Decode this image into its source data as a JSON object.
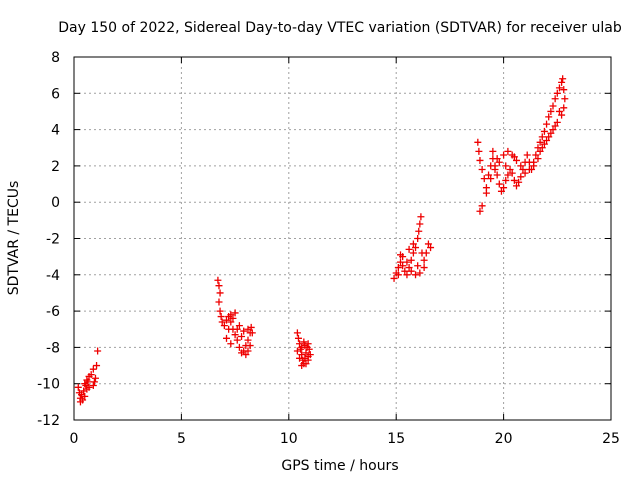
{
  "chart_data": {
    "type": "scatter",
    "title": "Day 150 of 2022, Sidereal Day-to-day VTEC variation (SDTVAR) for receiver ulab",
    "xlabel": "GPS time / hours",
    "ylabel": "SDTVAR / TECUs",
    "xlim": [
      0,
      25
    ],
    "ylim": [
      -12,
      8
    ],
    "xticks": [
      "0",
      "5",
      "10",
      "15",
      "20",
      "25"
    ],
    "yticks": [
      "8",
      "6",
      "4",
      "2",
      "0",
      "-2",
      "-4",
      "-6",
      "-8",
      "-10",
      "-12"
    ],
    "grid": true,
    "marker": "+",
    "marker_color": "#ee0000",
    "series": [
      {
        "name": "SDTVAR",
        "points": [
          [
            0.2,
            -10.2
          ],
          [
            0.25,
            -10.5
          ],
          [
            0.3,
            -10.8
          ],
          [
            0.35,
            -10.6
          ],
          [
            0.4,
            -10.9
          ],
          [
            0.45,
            -10.4
          ],
          [
            0.5,
            -10.7
          ],
          [
            0.55,
            -10.1
          ],
          [
            0.6,
            -10.3
          ],
          [
            0.65,
            -9.9
          ],
          [
            0.7,
            -9.6
          ],
          [
            0.8,
            -9.5
          ],
          [
            0.9,
            -9.2
          ],
          [
            0.95,
            -9.9
          ],
          [
            1.0,
            -9.7
          ],
          [
            1.05,
            -9.0
          ],
          [
            1.1,
            -8.2
          ],
          [
            0.3,
            -11.0
          ],
          [
            0.5,
            -10.0
          ],
          [
            0.7,
            -10.2
          ],
          [
            0.9,
            -10.1
          ],
          [
            0.6,
            -9.8
          ],
          [
            6.7,
            -4.3
          ],
          [
            6.75,
            -4.6
          ],
          [
            6.8,
            -5.0
          ],
          [
            6.75,
            -5.5
          ],
          [
            6.8,
            -6.0
          ],
          [
            6.85,
            -6.3
          ],
          [
            6.9,
            -6.6
          ],
          [
            7.0,
            -6.8
          ],
          [
            7.1,
            -6.5
          ],
          [
            7.2,
            -6.3
          ],
          [
            7.3,
            -6.6
          ],
          [
            7.4,
            -7.0
          ],
          [
            7.5,
            -7.3
          ],
          [
            7.6,
            -7.6
          ],
          [
            7.7,
            -8.0
          ],
          [
            7.8,
            -8.3
          ],
          [
            7.9,
            -8.2
          ],
          [
            8.0,
            -7.9
          ],
          [
            8.1,
            -7.6
          ],
          [
            8.2,
            -7.2
          ],
          [
            8.25,
            -6.9
          ],
          [
            8.3,
            -7.2
          ],
          [
            8.2,
            -7.9
          ],
          [
            8.1,
            -8.2
          ],
          [
            8.0,
            -8.4
          ],
          [
            7.8,
            -7.4
          ],
          [
            7.6,
            -7.0
          ],
          [
            7.4,
            -6.4
          ],
          [
            7.3,
            -6.2
          ],
          [
            7.5,
            -6.1
          ],
          [
            7.7,
            -6.8
          ],
          [
            7.9,
            -7.1
          ],
          [
            8.1,
            -7.0
          ],
          [
            7.2,
            -7.0
          ],
          [
            7.1,
            -7.5
          ],
          [
            7.3,
            -7.8
          ],
          [
            10.4,
            -7.2
          ],
          [
            10.45,
            -7.5
          ],
          [
            10.5,
            -7.8
          ],
          [
            10.55,
            -8.1
          ],
          [
            10.6,
            -8.4
          ],
          [
            10.65,
            -8.7
          ],
          [
            10.7,
            -8.9
          ],
          [
            10.75,
            -8.6
          ],
          [
            10.8,
            -8.3
          ],
          [
            10.85,
            -8.0
          ],
          [
            10.9,
            -7.8
          ],
          [
            10.95,
            -8.1
          ],
          [
            11.0,
            -8.4
          ],
          [
            10.9,
            -8.7
          ],
          [
            10.8,
            -8.9
          ],
          [
            10.6,
            -8.0
          ],
          [
            10.7,
            -7.7
          ],
          [
            10.5,
            -8.6
          ],
          [
            10.4,
            -8.2
          ],
          [
            10.6,
            -9.0
          ],
          [
            10.75,
            -7.9
          ],
          [
            10.9,
            -8.5
          ],
          [
            14.9,
            -4.2
          ],
          [
            15.0,
            -3.9
          ],
          [
            15.1,
            -3.6
          ],
          [
            15.2,
            -3.3
          ],
          [
            15.3,
            -3.5
          ],
          [
            15.4,
            -3.8
          ],
          [
            15.5,
            -4.0
          ],
          [
            15.6,
            -3.6
          ],
          [
            15.7,
            -3.2
          ],
          [
            15.8,
            -2.8
          ],
          [
            15.9,
            -2.5
          ],
          [
            16.0,
            -2.0
          ],
          [
            16.05,
            -1.6
          ],
          [
            16.1,
            -1.2
          ],
          [
            16.15,
            -0.8
          ],
          [
            16.2,
            -2.8
          ],
          [
            16.3,
            -3.2
          ],
          [
            16.4,
            -2.8
          ],
          [
            16.5,
            -2.3
          ],
          [
            16.6,
            -2.5
          ],
          [
            16.3,
            -3.6
          ],
          [
            16.1,
            -3.9
          ],
          [
            15.9,
            -4.0
          ],
          [
            15.7,
            -3.8
          ],
          [
            15.5,
            -3.3
          ],
          [
            15.3,
            -3.0
          ],
          [
            15.2,
            -2.9
          ],
          [
            15.6,
            -2.6
          ],
          [
            15.8,
            -2.3
          ],
          [
            15.1,
            -4.0
          ],
          [
            16.0,
            -3.5
          ],
          [
            18.8,
            3.3
          ],
          [
            18.85,
            2.8
          ],
          [
            18.9,
            2.3
          ],
          [
            19.0,
            1.8
          ],
          [
            19.1,
            1.3
          ],
          [
            19.2,
            0.8
          ],
          [
            19.3,
            1.5
          ],
          [
            19.4,
            2.0
          ],
          [
            19.5,
            2.4
          ],
          [
            19.6,
            2.0
          ],
          [
            19.7,
            1.5
          ],
          [
            19.8,
            1.0
          ],
          [
            19.9,
            0.6
          ],
          [
            20.0,
            0.8
          ],
          [
            20.1,
            1.2
          ],
          [
            20.2,
            1.5
          ],
          [
            20.3,
            1.8
          ],
          [
            20.4,
            1.6
          ],
          [
            20.5,
            1.2
          ],
          [
            20.6,
            0.9
          ],
          [
            20.7,
            1.1
          ],
          [
            20.8,
            1.4
          ],
          [
            20.9,
            1.8
          ],
          [
            21.0,
            2.2
          ],
          [
            21.1,
            2.6
          ],
          [
            21.2,
            2.2
          ],
          [
            21.3,
            1.8
          ],
          [
            21.4,
            2.2
          ],
          [
            21.5,
            2.6
          ],
          [
            21.6,
            3.0
          ],
          [
            21.7,
            3.3
          ],
          [
            21.8,
            3.6
          ],
          [
            21.9,
            3.9
          ],
          [
            22.0,
            4.3
          ],
          [
            22.1,
            4.7
          ],
          [
            22.2,
            5.0
          ],
          [
            22.3,
            5.3
          ],
          [
            22.4,
            5.7
          ],
          [
            22.5,
            6.0
          ],
          [
            22.6,
            6.3
          ],
          [
            22.7,
            6.6
          ],
          [
            22.75,
            6.8
          ],
          [
            22.8,
            6.2
          ],
          [
            22.85,
            5.7
          ],
          [
            22.8,
            5.2
          ],
          [
            22.7,
            4.8
          ],
          [
            22.5,
            4.4
          ],
          [
            22.3,
            4.0
          ],
          [
            22.1,
            3.6
          ],
          [
            21.9,
            3.2
          ],
          [
            21.7,
            2.8
          ],
          [
            21.6,
            2.4
          ],
          [
            21.4,
            2.0
          ],
          [
            21.2,
            1.8
          ],
          [
            21.0,
            1.6
          ],
          [
            20.8,
            2.0
          ],
          [
            20.6,
            2.3
          ],
          [
            20.4,
            2.6
          ],
          [
            20.2,
            2.8
          ],
          [
            20.0,
            2.6
          ],
          [
            19.8,
            2.2
          ],
          [
            19.6,
            1.8
          ],
          [
            19.4,
            1.3
          ],
          [
            19.2,
            0.5
          ],
          [
            19.0,
            -0.2
          ],
          [
            18.9,
            -0.5
          ],
          [
            19.5,
            2.8
          ],
          [
            19.7,
            2.4
          ],
          [
            20.1,
            2.0
          ],
          [
            20.5,
            2.5
          ],
          [
            22.6,
            5.0
          ],
          [
            22.4,
            4.2
          ],
          [
            22.2,
            3.8
          ],
          [
            22.0,
            3.4
          ],
          [
            21.8,
            3.0
          ]
        ]
      }
    ]
  }
}
